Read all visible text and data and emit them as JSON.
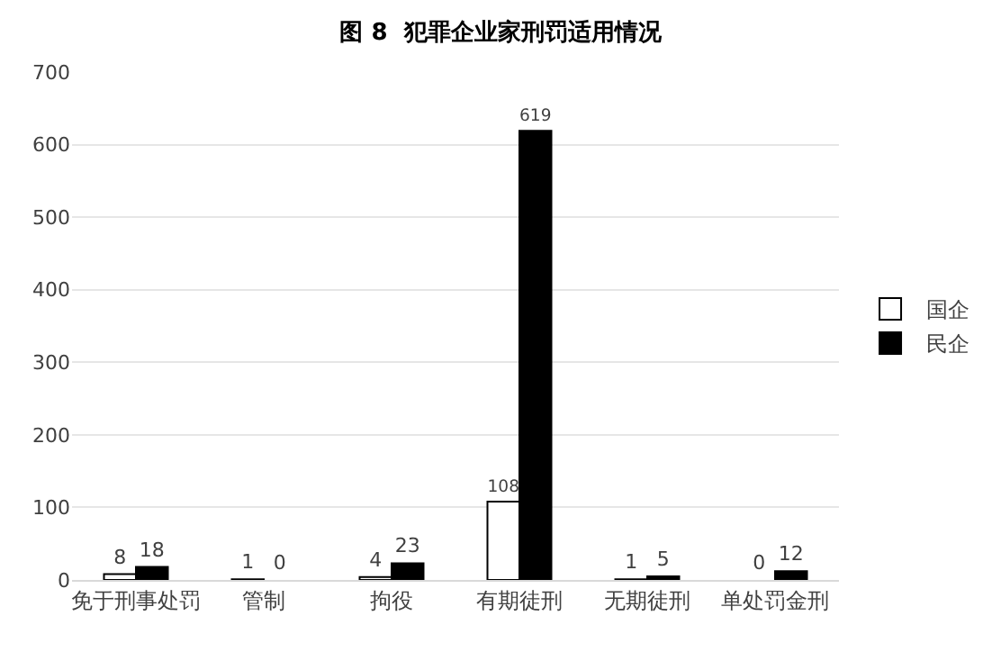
{
  "chart_data": {
    "type": "bar",
    "title": "图 8  犯罪企业家刑罚适用情况",
    "categories": [
      "免于刑事处罚",
      "管制",
      "拘役",
      "有期徒刑",
      "无期徒刑",
      "单处罚金刑"
    ],
    "series": [
      {
        "name": "国企",
        "color": "#ffffff",
        "values": [
          8,
          1,
          4,
          108,
          1,
          0
        ]
      },
      {
        "name": "民企",
        "color": "#000000",
        "values": [
          18,
          0,
          23,
          619,
          5,
          12
        ]
      }
    ],
    "ylim": [
      0,
      700
    ],
    "yticks": [
      0,
      100,
      200,
      300,
      400,
      500,
      600,
      700
    ],
    "grid": "y",
    "legend": "right",
    "data_labels": true
  }
}
